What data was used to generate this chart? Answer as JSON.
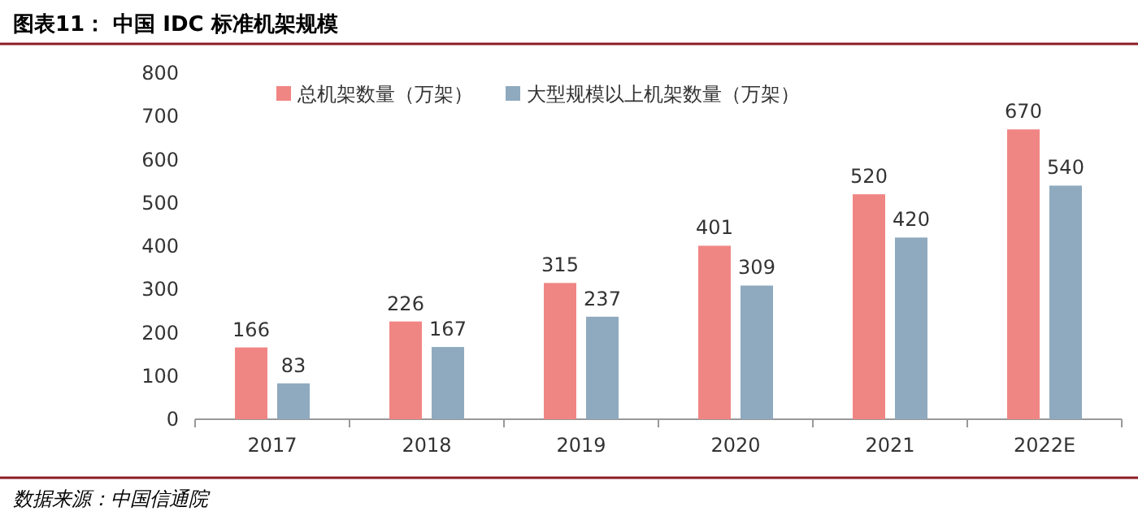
{
  "chart_data": {
    "type": "bar",
    "title": "图表11： 中国 IDC 标准机架规模",
    "categories": [
      "2017",
      "2018",
      "2019",
      "2020",
      "2021",
      "2022E"
    ],
    "series": [
      {
        "name": "总机架数量（万架）",
        "color": "#f08684",
        "values": [
          166,
          226,
          315,
          401,
          520,
          670
        ]
      },
      {
        "name": "大型规模以上机架数量（万架）",
        "color": "#8faabf",
        "values": [
          83,
          167,
          237,
          309,
          420,
          540
        ]
      }
    ],
    "ylim": [
      0,
      800
    ],
    "yticks": [
      0,
      100,
      200,
      300,
      400,
      500,
      600,
      700,
      800
    ],
    "data_labels": true,
    "legend": "top",
    "grid": false,
    "annotations": [
      "数据来源：中国信通院"
    ]
  }
}
